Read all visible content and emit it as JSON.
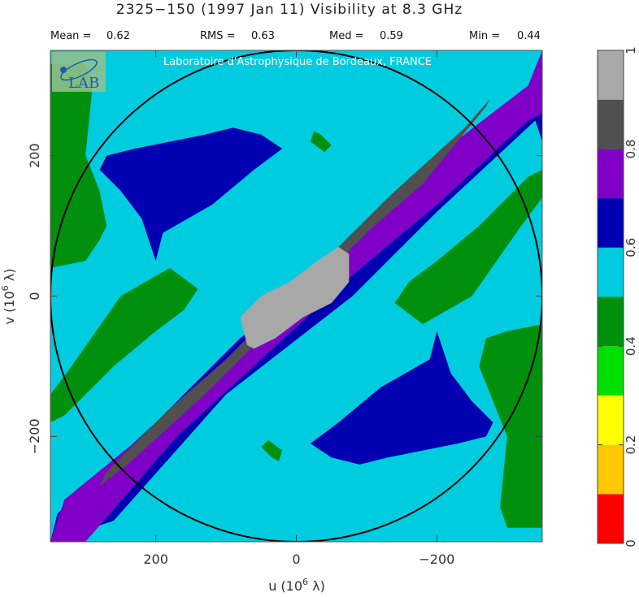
{
  "chart_data": {
    "type": "heatmap",
    "title": "2325−150  (1997 Jan 11)   Visibility at  8.3 GHz",
    "stats": [
      {
        "label": "Mean =",
        "value": "0.62"
      },
      {
        "label": "RMS =",
        "value": "0.63"
      },
      {
        "label": "Med =",
        "value": "0.59"
      },
      {
        "label": "Min =",
        "value": "0.44"
      }
    ],
    "xlabel_text": "u  (10",
    "xlabel_exp": "6",
    "xlabel_unit": " λ)",
    "ylabel_text": "v  (10",
    "ylabel_exp": "6",
    "ylabel_unit": " λ)",
    "xlim": [
      350,
      -350
    ],
    "ylim": [
      -350,
      350
    ],
    "x_ticks": [
      200,
      0,
      -200
    ],
    "x_tick_labels": [
      "200",
      "0",
      "−200"
    ],
    "y_ticks": [
      200,
      0,
      -200
    ],
    "y_tick_labels": [
      "200",
      "0",
      "−200"
    ],
    "uv_circle_radius": 350,
    "banner": "Laboratoire d'Astrophysique de Bordeaux, FRANCE",
    "logo_text": "LAB",
    "colorbar": {
      "levels": [
        {
          "from": 0.0,
          "to": 0.1,
          "color": "#ff0000"
        },
        {
          "from": 0.1,
          "to": 0.2,
          "color": "#ffc800"
        },
        {
          "from": 0.2,
          "to": 0.3,
          "color": "#ffff00"
        },
        {
          "from": 0.3,
          "to": 0.4,
          "color": "#00e000"
        },
        {
          "from": 0.4,
          "to": 0.5,
          "color": "#00900d"
        },
        {
          "from": 0.5,
          "to": 0.6,
          "color": "#00ccdf"
        },
        {
          "from": 0.6,
          "to": 0.7,
          "color": "#0000b0"
        },
        {
          "from": 0.7,
          "to": 0.8,
          "color": "#8000c8"
        },
        {
          "from": 0.8,
          "to": 0.9,
          "color": "#505050"
        },
        {
          "from": 0.9,
          "to": 1.0,
          "color": "#a8a8a8"
        }
      ],
      "ticks": [
        0,
        0.2,
        0.4,
        0.6,
        0.8,
        1
      ],
      "tick_labels": [
        "0",
        "0.2",
        "0.4",
        "0.6",
        "0.8",
        "1"
      ]
    },
    "contour_regions": [
      {
        "name": "region-green-upper-left-edge",
        "level": 0.45,
        "color": "#00900d",
        "u": [
          350,
          300,
          290,
          300,
          280,
          270,
          280,
          300,
          350
        ],
        "v": [
          330,
          330,
          300,
          200,
          150,
          100,
          80,
          50,
          40
        ]
      },
      {
        "name": "region-green-left-arm",
        "level": 0.45,
        "color": "#00900d",
        "u": [
          350,
          330,
          260,
          200,
          160,
          140,
          180,
          250,
          320,
          350
        ],
        "v": [
          -180,
          -170,
          -100,
          -50,
          -20,
          10,
          40,
          0,
          -100,
          -140
        ]
      },
      {
        "name": "region-green-right-arm",
        "level": 0.45,
        "color": "#00900d",
        "u": [
          -350,
          -330,
          -260,
          -200,
          -160,
          -140,
          -180,
          -250,
          -320,
          -350
        ],
        "v": [
          180,
          170,
          100,
          50,
          20,
          -10,
          -40,
          0,
          100,
          140
        ]
      },
      {
        "name": "region-green-lower-right-edge",
        "level": 0.45,
        "color": "#00900d",
        "u": [
          -350,
          -300,
          -290,
          -300,
          -280,
          -260,
          -270,
          -300,
          -350
        ],
        "v": [
          -330,
          -330,
          -300,
          -200,
          -150,
          -100,
          -60,
          -50,
          -40
        ]
      },
      {
        "name": "region-green-blob-upper",
        "level": 0.45,
        "color": "#00900d",
        "u": [
          -35,
          -50,
          -40,
          -20,
          -25
        ],
        "v": [
          230,
          215,
          205,
          220,
          235
        ]
      },
      {
        "name": "region-green-blob-lower",
        "level": 0.45,
        "color": "#00900d",
        "u": [
          35,
          50,
          40,
          20,
          25
        ],
        "v": [
          -230,
          -215,
          -205,
          -220,
          -235
        ]
      },
      {
        "name": "region-blue-arm",
        "level": 0.65,
        "color": "#0000b0",
        "u": [
          350,
          340,
          200,
          80,
          -100,
          -260,
          -350,
          -350,
          -340,
          -200,
          -80,
          100,
          260,
          350
        ],
        "v": [
          -350,
          -310,
          -180,
          -60,
          70,
          230,
          300,
          220,
          250,
          120,
          0,
          -140,
          -320,
          -350
        ]
      },
      {
        "name": "region-blue-blob-upper-left",
        "level": 0.65,
        "color": "#0000b0",
        "u": [
          200,
          190,
          120,
          60,
          20,
          50,
          90,
          130,
          180,
          230,
          270,
          280,
          250,
          220,
          200
        ],
        "v": [
          50,
          90,
          130,
          180,
          210,
          230,
          240,
          230,
          220,
          210,
          200,
          180,
          150,
          110,
          50
        ]
      },
      {
        "name": "region-blue-blob-lower-right",
        "level": 0.65,
        "color": "#0000b0",
        "u": [
          -200,
          -190,
          -120,
          -60,
          -20,
          -50,
          -90,
          -130,
          -180,
          -230,
          -270,
          -280,
          -250,
          -220,
          -200
        ],
        "v": [
          -50,
          -90,
          -130,
          -180,
          -210,
          -230,
          -240,
          -230,
          -220,
          -210,
          -200,
          -180,
          -150,
          -110,
          -50
        ]
      },
      {
        "name": "region-purple-band",
        "level": 0.75,
        "color": "#8000c8",
        "u": [
          350,
          330,
          220,
          120,
          30,
          -80,
          -200,
          -330,
          -350,
          -350,
          -330,
          -200,
          -80,
          50,
          170,
          300,
          350
        ],
        "v": [
          -350,
          -290,
          -200,
          -110,
          -20,
          90,
          200,
          300,
          350,
          260,
          250,
          130,
          30,
          -90,
          -200,
          -350,
          -350
        ]
      },
      {
        "name": "region-dark-gray-band",
        "level": 0.85,
        "color": "#505050",
        "u": [
          280,
          270,
          180,
          100,
          40,
          -30,
          -130,
          -240,
          -275,
          -270,
          -180,
          -100,
          -40,
          30,
          130,
          240,
          280
        ],
        "v": [
          -270,
          -250,
          -160,
          -90,
          -30,
          40,
          140,
          240,
          280,
          270,
          160,
          90,
          30,
          -40,
          -140,
          -240,
          -270
        ]
      },
      {
        "name": "region-light-gray-core",
        "level": 0.95,
        "color": "#a8a8a8",
        "u": [
          70,
          80,
          50,
          10,
          -30,
          -60,
          -75,
          -75,
          -50,
          -10,
          30,
          60,
          70
        ],
        "v": [
          -70,
          -30,
          0,
          20,
          50,
          70,
          60,
          20,
          -10,
          -30,
          -60,
          -75,
          -70
        ]
      }
    ]
  }
}
